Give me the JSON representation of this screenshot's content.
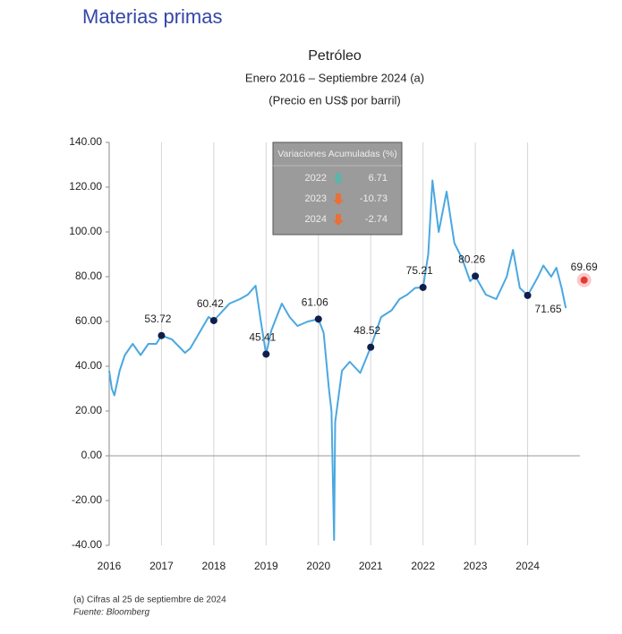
{
  "header": {
    "title": "Materias primas"
  },
  "chart_data": {
    "type": "line",
    "title": "Petróleo",
    "subtitle": "Enero 2016 – Septiembre 2024 (a)",
    "unit_label": "(Precio en US$ por barril)",
    "xlim": [
      2016,
      2025
    ],
    "xticks": [
      2016,
      2017,
      2018,
      2019,
      2020,
      2021,
      2022,
      2023,
      2024
    ],
    "ylim": [
      -40,
      140
    ],
    "yticks": [
      {
        "value": 140,
        "label": "140.00"
      },
      {
        "value": 120,
        "label": "120.00"
      },
      {
        "value": 100,
        "label": "100.00"
      },
      {
        "value": 80,
        "label": "80.00"
      },
      {
        "value": 60,
        "label": "60.00"
      },
      {
        "value": 40,
        "label": "40.00"
      },
      {
        "value": 20,
        "label": "20.00"
      },
      {
        "value": 0,
        "label": "0.00"
      },
      {
        "value": -20,
        "label": "-20.00"
      },
      {
        "value": -40,
        "label": "-40.00"
      }
    ],
    "grid": true,
    "x": [
      2016.0,
      2016.05,
      2016.1,
      2016.2,
      2016.3,
      2016.45,
      2016.6,
      2016.75,
      2016.9,
      2017.0,
      2017.2,
      2017.45,
      2017.55,
      2017.75,
      2017.9,
      2018.0,
      2018.3,
      2018.5,
      2018.65,
      2018.8,
      2018.9,
      2019.0,
      2019.1,
      2019.3,
      2019.45,
      2019.6,
      2019.8,
      2020.0,
      2020.1,
      2020.2,
      2020.25,
      2020.3,
      2020.32,
      2020.45,
      2020.6,
      2020.8,
      2021.0,
      2021.2,
      2021.4,
      2021.55,
      2021.7,
      2021.85,
      2022.0,
      2022.1,
      2022.18,
      2022.3,
      2022.45,
      2022.6,
      2022.75,
      2022.9,
      2023.0,
      2023.2,
      2023.4,
      2023.6,
      2023.72,
      2023.85,
      2024.0,
      2024.2,
      2024.3,
      2024.45,
      2024.55,
      2024.65,
      2024.73
    ],
    "series": [
      {
        "name": "Petróleo",
        "color": "#4aa8e0",
        "values": [
          38,
          30,
          27,
          38,
          45,
          50,
          45,
          50,
          50,
          53.72,
          52,
          46,
          48,
          56,
          62,
          60.42,
          68,
          70,
          72,
          76,
          60,
          45.41,
          56,
          68,
          62,
          58,
          60,
          61.06,
          55,
          30,
          20,
          -37.6,
          15,
          38,
          42,
          37,
          48.52,
          62,
          65,
          70,
          72,
          75,
          75.21,
          90,
          123,
          100,
          118,
          95,
          88,
          78,
          80.26,
          72,
          70,
          80,
          92,
          75,
          71.65,
          80,
          85,
          80,
          84,
          75,
          66
        ]
      }
    ],
    "annotations": [
      {
        "x": 2017.0,
        "value": 53.72
      },
      {
        "x": 2018.0,
        "value": 60.42
      },
      {
        "x": 2019.0,
        "value": 45.41
      },
      {
        "x": 2020.0,
        "value": 61.06
      },
      {
        "x": 2021.0,
        "value": 48.52
      },
      {
        "x": 2022.0,
        "value": 75.21
      },
      {
        "x": 2023.0,
        "value": 80.26
      },
      {
        "x": 2024.0,
        "value": 71.65
      },
      {
        "x": 2025.08,
        "value": 69.69
      }
    ],
    "inset": {
      "title": "Variaciones Acumuladas (%)",
      "rows": [
        [
          "2022",
          6.71
        ],
        [
          "2023",
          -10.73
        ],
        [
          "2024",
          -2.74
        ]
      ]
    },
    "footnote": "(a) Cifras al 25 de septiembre de 2024",
    "source": "Fuente: Bloomberg"
  }
}
